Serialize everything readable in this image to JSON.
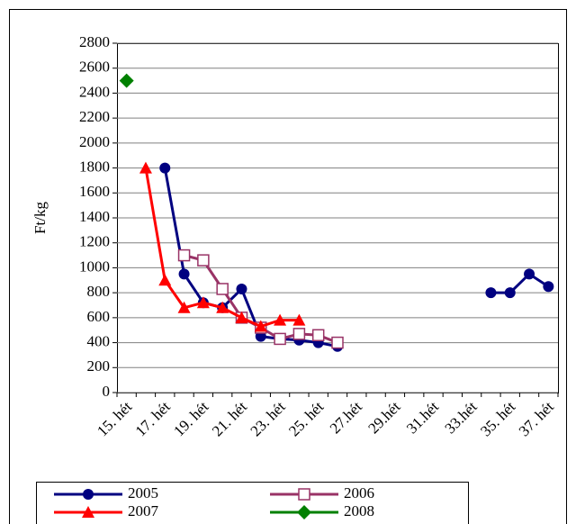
{
  "chart_data": {
    "type": "line",
    "y_label": "Ft/kg",
    "categories": [
      "15. hét",
      null,
      "17. hét",
      null,
      "19. hét",
      null,
      "21. hét",
      null,
      "23. hét",
      null,
      "25. hét",
      null,
      "27.hét",
      null,
      "29.hét",
      null,
      "31.hét",
      null,
      "33.hét",
      null,
      "35. hét",
      null,
      "37. hét"
    ],
    "series": [
      {
        "name": "2005",
        "color": "#000080",
        "marker": "circle",
        "values": [
          null,
          null,
          1800,
          950,
          720,
          680,
          830,
          450,
          430,
          420,
          400,
          370,
          null,
          null,
          null,
          null,
          null,
          null,
          null,
          800,
          800,
          950,
          850
        ]
      },
      {
        "name": "2006",
        "color": "#993366",
        "marker": "square",
        "values": [
          null,
          null,
          null,
          1100,
          1060,
          830,
          600,
          520,
          430,
          470,
          460,
          400,
          null,
          null,
          null,
          null,
          null,
          null,
          null,
          null,
          null,
          null,
          null
        ]
      },
      {
        "name": "2007",
        "color": "#ff0000",
        "marker": "triangle",
        "values": [
          null,
          1800,
          900,
          680,
          720,
          680,
          600,
          530,
          580,
          580,
          null,
          null,
          null,
          null,
          null,
          null,
          null,
          null,
          null,
          null,
          null,
          null,
          null
        ]
      },
      {
        "name": "2008",
        "color": "#008000",
        "marker": "diamond",
        "values": [
          2500,
          null,
          null,
          null,
          null,
          null,
          null,
          null,
          null,
          null,
          null,
          null,
          null,
          null,
          null,
          null,
          null,
          null,
          null,
          null,
          null,
          null,
          null
        ]
      }
    ],
    "ylim": [
      0,
      2800
    ],
    "yticks": [
      0,
      200,
      400,
      600,
      800,
      1000,
      1200,
      1400,
      1600,
      1800,
      2000,
      2200,
      2400,
      2600,
      2800
    ],
    "grid": true
  }
}
